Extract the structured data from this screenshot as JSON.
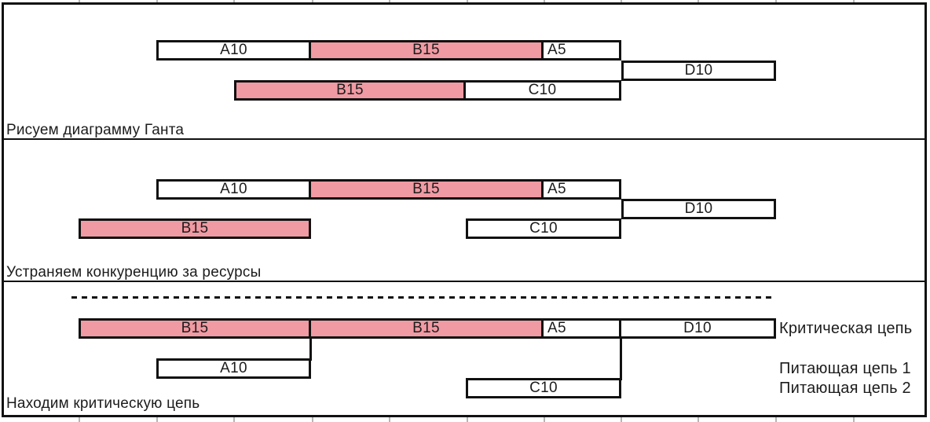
{
  "colors": {
    "critical_fill": "#f09aa3",
    "normal_fill": "#ffffff",
    "border": "#111111",
    "text": "#1c1c1c"
  },
  "chart_data": {
    "type": "gantt",
    "legend_note_fill": "pink bars = tasks of shared resource B (critical)",
    "time_axis": {
      "origin_t": 0,
      "visible_range": [
        -5.5,
        40
      ],
      "grid": "off"
    },
    "panels": [
      {
        "caption": "Рисуем диаграмму Ганта",
        "bars": [
          {
            "label": "A10",
            "task": "A",
            "start": 0,
            "duration": 10,
            "row": 1,
            "critical": false
          },
          {
            "label": "B15",
            "task": "B",
            "start": 10,
            "duration": 15,
            "row": 1,
            "critical": true
          },
          {
            "label": "A5",
            "task": "A",
            "start": 25,
            "duration": 5,
            "row": 1,
            "critical": false
          },
          {
            "label": "D10",
            "task": "D",
            "start": 30,
            "duration": 10,
            "row": 2,
            "critical": false
          },
          {
            "label": "B15",
            "task": "B",
            "start": 5,
            "duration": 15,
            "row": 3,
            "critical": true
          },
          {
            "label": "C10",
            "task": "C",
            "start": 20,
            "duration": 10,
            "row": 3,
            "critical": false
          }
        ]
      },
      {
        "caption": "Устраняем конкуренцию за ресурсы",
        "bars": [
          {
            "label": "A10",
            "task": "A",
            "start": 0,
            "duration": 10,
            "row": 1,
            "critical": false
          },
          {
            "label": "B15",
            "task": "B",
            "start": 10,
            "duration": 15,
            "row": 1,
            "critical": true
          },
          {
            "label": "A5",
            "task": "A",
            "start": 25,
            "duration": 5,
            "row": 1,
            "critical": false
          },
          {
            "label": "D10",
            "task": "D",
            "start": 30,
            "duration": 10,
            "row": 2,
            "critical": false
          },
          {
            "label": "B15",
            "task": "B",
            "start": -5,
            "duration": 15,
            "row": 3,
            "critical": true
          },
          {
            "label": "C10",
            "task": "C",
            "start": 20,
            "duration": 10,
            "row": 3,
            "critical": false
          }
        ]
      },
      {
        "caption": "Находим критическую цепь",
        "dashed_line": {
          "start": -5.5,
          "end": 40
        },
        "bars": [
          {
            "label": "B15",
            "task": "B",
            "start": -5,
            "duration": 15,
            "row": 1,
            "critical": true
          },
          {
            "label": "B15",
            "task": "B",
            "start": 10,
            "duration": 15,
            "row": 1,
            "critical": true
          },
          {
            "label": "A5",
            "task": "A",
            "start": 25,
            "duration": 5,
            "row": 1,
            "critical": false
          },
          {
            "label": "D10",
            "task": "D",
            "start": 30,
            "duration": 10,
            "row": 1,
            "critical": false
          },
          {
            "label": "A10",
            "task": "A",
            "start": 0,
            "duration": 10,
            "row": 2,
            "critical": false
          },
          {
            "label": "C10",
            "task": "C",
            "start": 20,
            "duration": 10,
            "row": 3,
            "critical": false
          }
        ],
        "connectors": [
          {
            "at": 10,
            "from_row": 1,
            "to_row": 2
          },
          {
            "at": 30,
            "from_row": 1,
            "to_row": 3
          }
        ],
        "chain_labels": [
          {
            "text": "Критическая цепь",
            "row": 1
          },
          {
            "text": "Питающая цепь 1",
            "row": 2
          },
          {
            "text": "Питающая цепь 2",
            "row": 3
          }
        ]
      }
    ]
  }
}
